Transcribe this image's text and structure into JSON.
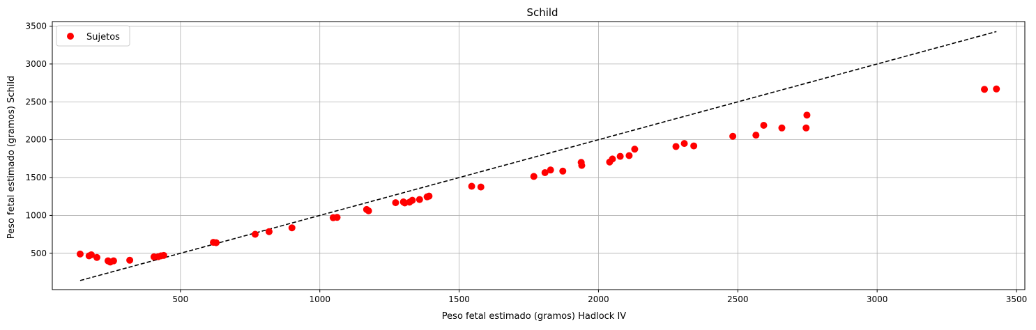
{
  "chart_data": {
    "type": "scatter",
    "title": "Schild",
    "xlabel": "Peso fetal estimado (gramos) Hadlock IV",
    "ylabel": "Peso fetal estimado (gramos) Schild",
    "xlim": [
      40,
      3530
    ],
    "ylim": [
      20,
      3560
    ],
    "xticks": [
      500,
      1000,
      1500,
      2000,
      2500,
      3000,
      3500
    ],
    "yticks": [
      500,
      1000,
      1500,
      2000,
      2500,
      3000,
      3500
    ],
    "grid": true,
    "legend_position": "top-left",
    "series": [
      {
        "name": "Sujetos",
        "kind": "scatter",
        "color": "#ff0000",
        "points": [
          [
            140,
            490
          ],
          [
            172,
            466
          ],
          [
            180,
            480
          ],
          [
            200,
            445
          ],
          [
            240,
            400
          ],
          [
            248,
            384
          ],
          [
            260,
            400
          ],
          [
            318,
            408
          ],
          [
            405,
            453
          ],
          [
            420,
            455
          ],
          [
            430,
            466
          ],
          [
            440,
            472
          ],
          [
            618,
            644
          ],
          [
            628,
            640
          ],
          [
            768,
            751
          ],
          [
            818,
            786
          ],
          [
            900,
            836
          ],
          [
            1048,
            970
          ],
          [
            1062,
            974
          ],
          [
            1168,
            1078
          ],
          [
            1175,
            1060
          ],
          [
            1272,
            1168
          ],
          [
            1300,
            1178
          ],
          [
            1305,
            1165
          ],
          [
            1322,
            1175
          ],
          [
            1332,
            1200
          ],
          [
            1358,
            1210
          ],
          [
            1385,
            1245
          ],
          [
            1392,
            1255
          ],
          [
            1545,
            1385
          ],
          [
            1578,
            1375
          ],
          [
            1768,
            1515
          ],
          [
            1808,
            1565
          ],
          [
            1828,
            1600
          ],
          [
            1872,
            1585
          ],
          [
            1938,
            1700
          ],
          [
            1940,
            1660
          ],
          [
            2040,
            1705
          ],
          [
            2050,
            1745
          ],
          [
            2078,
            1780
          ],
          [
            2110,
            1790
          ],
          [
            2130,
            1875
          ],
          [
            2278,
            1910
          ],
          [
            2308,
            1950
          ],
          [
            2342,
            1918
          ],
          [
            2482,
            2045
          ],
          [
            2565,
            2060
          ],
          [
            2593,
            2190
          ],
          [
            2658,
            2155
          ],
          [
            2745,
            2155
          ],
          [
            2748,
            2325
          ],
          [
            3385,
            2665
          ],
          [
            3428,
            2670
          ]
        ]
      },
      {
        "kind": "reference-line",
        "color": "#000000",
        "style": "dashed",
        "points": [
          [
            140,
            140
          ],
          [
            3428,
            3428
          ]
        ]
      }
    ]
  }
}
